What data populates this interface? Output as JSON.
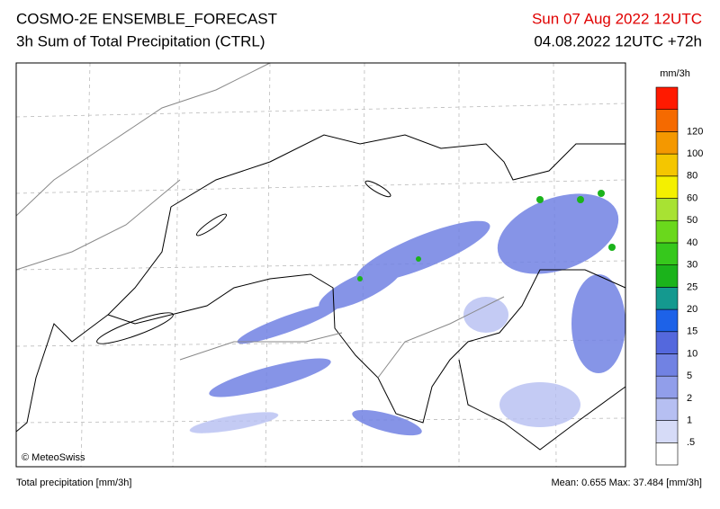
{
  "header": {
    "title": "COSMO-2E ENSEMBLE_FORECAST",
    "subtitle": "3h Sum of Total Precipitation (CTRL)",
    "valid_time": "Sun 07 Aug 2022 12UTC",
    "run_time": "04.08.2022 12UTC +72h"
  },
  "map": {
    "credit": "© MeteoSwiss"
  },
  "legend": {
    "unit": "mm/3h",
    "labels": [
      ".5",
      "1",
      "2",
      "5",
      "10",
      "15",
      "20",
      "25",
      "30",
      "40",
      "50",
      "60",
      "80",
      "100",
      "120"
    ],
    "colors": [
      "#ffffff",
      "#d6dbf7",
      "#b6bff2",
      "#919eea",
      "#7182e3",
      "#5468dd",
      "#1d62e8",
      "#14998f",
      "#1bb31b",
      "#36c81c",
      "#6ad81c",
      "#a8e233",
      "#f4f000",
      "#f4c600",
      "#f49800",
      "#f56a00",
      "#ff1a00"
    ]
  },
  "footer": {
    "left": "Total precipitation [mm/3h]",
    "right": "Mean:  0.655 Max:  37.484 [mm/3h]"
  }
}
